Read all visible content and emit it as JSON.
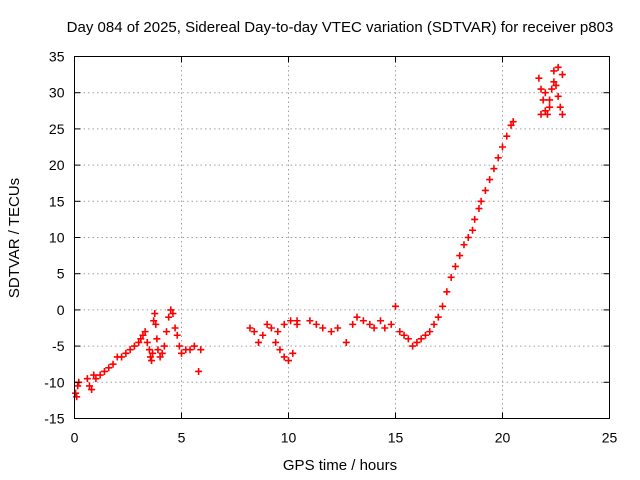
{
  "chart_data": {
    "type": "scatter",
    "title": "Day 084 of 2025, Sidereal Day-to-day VTEC variation (SDTVAR) for receiver p803",
    "xlabel": "GPS time / hours",
    "ylabel": "SDTVAR / TECUs",
    "xlim": [
      0,
      25
    ],
    "ylim": [
      -15,
      35
    ],
    "xticks": [
      0,
      5,
      10,
      15,
      20,
      25
    ],
    "yticks": [
      -15,
      -10,
      -5,
      0,
      5,
      10,
      15,
      20,
      25,
      30,
      35
    ],
    "grid": true,
    "marker": "plus",
    "color": "#ff0000",
    "series": [
      {
        "name": "SDTVAR",
        "x": [
          0.05,
          0.1,
          0.15,
          0.2,
          0.6,
          0.7,
          0.8,
          0.9,
          1.0,
          1.2,
          1.4,
          1.6,
          1.8,
          2.0,
          2.2,
          2.4,
          2.6,
          2.8,
          3.0,
          3.1,
          3.2,
          3.3,
          3.4,
          3.5,
          3.55,
          3.6,
          3.65,
          3.7,
          3.75,
          3.8,
          3.85,
          3.9,
          4.0,
          4.1,
          4.2,
          4.3,
          4.4,
          4.5,
          4.6,
          4.7,
          4.8,
          4.9,
          5.0,
          5.2,
          5.4,
          5.6,
          5.8,
          5.9,
          8.2,
          8.4,
          8.6,
          8.8,
          9.0,
          9.2,
          9.4,
          9.6,
          9.8,
          10.0,
          10.2,
          10.4,
          9.5,
          9.8,
          10.1,
          10.4,
          11.0,
          11.3,
          11.6,
          12.0,
          12.3,
          12.7,
          13.0,
          13.2,
          13.5,
          13.8,
          14.0,
          14.3,
          14.5,
          14.8,
          15.0,
          15.2,
          15.4,
          15.6,
          15.8,
          16.0,
          16.2,
          16.4,
          16.6,
          16.8,
          17.0,
          17.2,
          17.4,
          17.6,
          17.8,
          18.0,
          18.2,
          18.4,
          18.6,
          18.7,
          18.9,
          19.0,
          19.2,
          19.4,
          19.6,
          19.8,
          20.0,
          20.2,
          20.4,
          20.5,
          21.7,
          21.8,
          21.9,
          22.0,
          22.1,
          22.2,
          22.3,
          22.4,
          22.5,
          22.6,
          22.7,
          22.8,
          21.8,
          22.0,
          22.2,
          22.4,
          22.6,
          22.8
        ],
        "y": [
          -11.5,
          -12.0,
          -10.5,
          -10.0,
          -9.5,
          -10.5,
          -11.0,
          -9.0,
          -9.5,
          -9.0,
          -8.5,
          -8.0,
          -7.5,
          -6.5,
          -6.5,
          -6.0,
          -5.5,
          -5.0,
          -4.5,
          -4.0,
          -3.5,
          -3.0,
          -4.5,
          -5.5,
          -6.5,
          -7.0,
          -6.0,
          -1.5,
          -0.5,
          -2.0,
          -4.0,
          -5.5,
          -6.5,
          -6.0,
          -5.0,
          -3.0,
          -1.0,
          0.0,
          -0.5,
          -2.5,
          -3.5,
          -5.0,
          -6.0,
          -5.5,
          -5.5,
          -5.0,
          -8.5,
          -5.5,
          -2.5,
          -3.0,
          -4.5,
          -3.5,
          -2.0,
          -2.5,
          -4.5,
          -5.5,
          -6.5,
          -7.0,
          -6.0,
          -1.5,
          -3.0,
          -2.0,
          -1.5,
          -2.0,
          -1.5,
          -2.0,
          -2.5,
          -3.0,
          -2.5,
          -4.5,
          -2.0,
          -1.0,
          -1.5,
          -2.0,
          -2.5,
          -1.5,
          -2.5,
          -2.0,
          0.5,
          -3.0,
          -3.5,
          -4.0,
          -5.0,
          -4.5,
          -4.0,
          -3.5,
          -3.0,
          -2.0,
          -1.0,
          0.5,
          2.5,
          4.5,
          6.0,
          7.5,
          9.0,
          10.0,
          11.0,
          12.5,
          14.0,
          15.0,
          16.5,
          18.0,
          19.5,
          21.0,
          22.5,
          24.0,
          25.5,
          26.0,
          32.0,
          30.5,
          29.0,
          30.0,
          27.0,
          28.0,
          30.5,
          33.0,
          31.0,
          29.5,
          28.0,
          27.0,
          27.0,
          27.5,
          29.0,
          31.5,
          33.5,
          32.5
        ]
      }
    ]
  }
}
